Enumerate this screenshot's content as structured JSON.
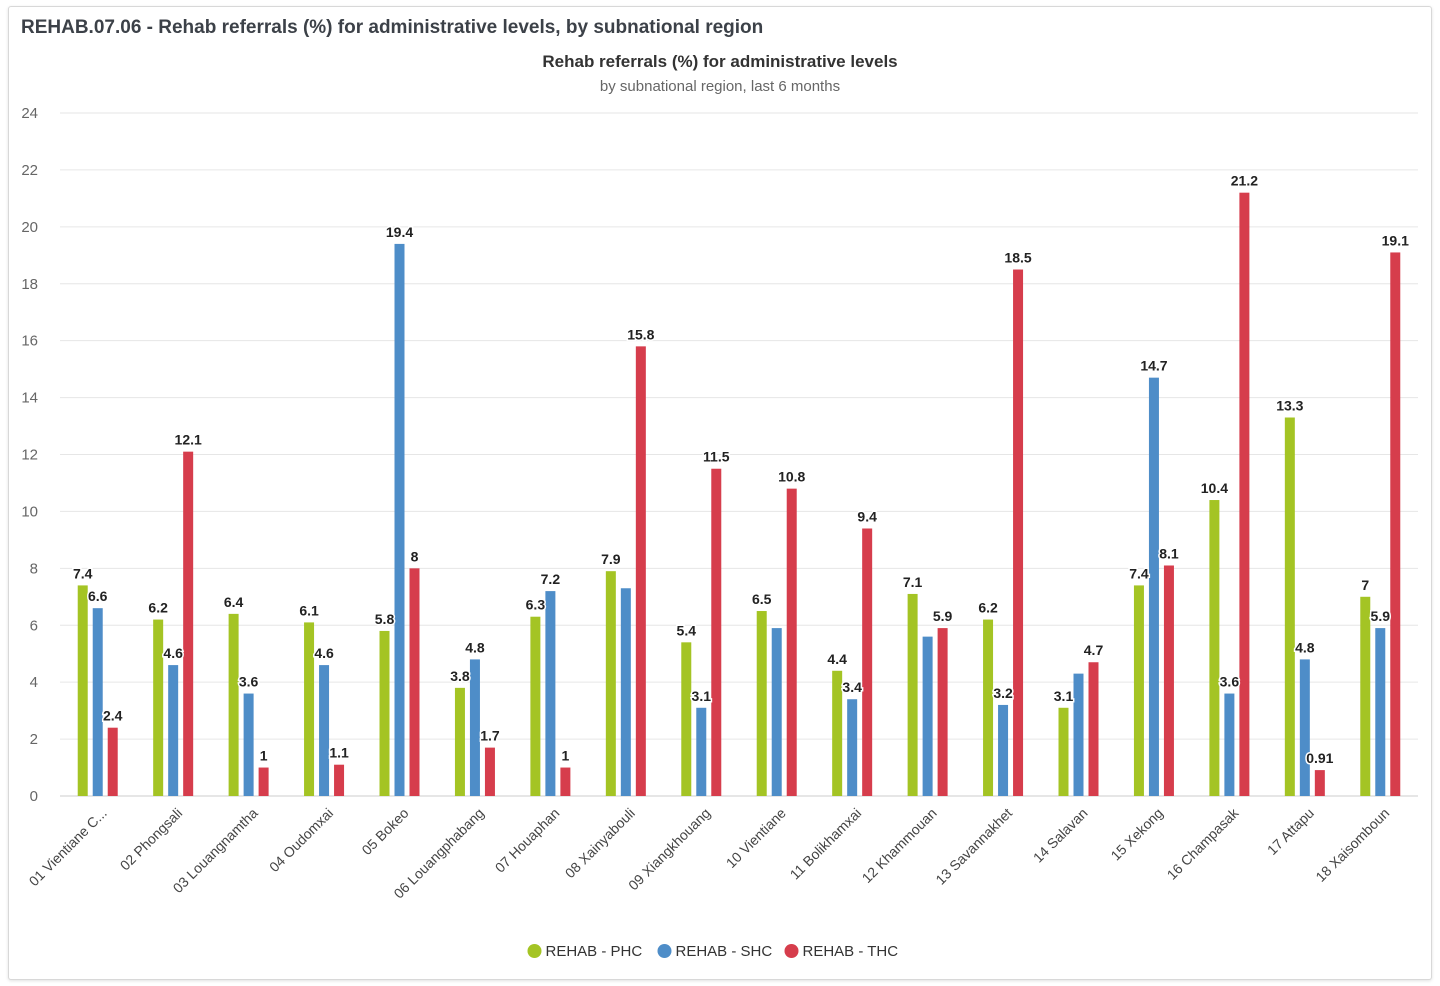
{
  "panel": {
    "title": "REHAB.07.06 - Rehab referrals (%) for administrative levels, by subnational region"
  },
  "chart_data": {
    "type": "bar",
    "title": "Rehab referrals (%) for administrative levels",
    "subtitle": "by subnational region, last 6 months",
    "xlabel": "",
    "ylabel": "",
    "ylim": [
      0,
      24
    ],
    "yticks": [
      0,
      2,
      4,
      6,
      8,
      10,
      12,
      14,
      16,
      18,
      20,
      22,
      24
    ],
    "grid": true,
    "legend_position": "bottom-center",
    "categories": [
      "01 Vientiane C...",
      "02 Phongsali",
      "03 Louangnamtha",
      "04 Oudomxai",
      "05 Bokeo",
      "06 Louangphabang",
      "07 Houaphan",
      "08 Xainyabouli",
      "09 Xiangkhouang",
      "10 Vientiane",
      "11 Bolikhamxai",
      "12 Khammouan",
      "13 Savannakhet",
      "14 Salavan",
      "15 Xekong",
      "16 Champasak",
      "17 Attapu",
      "18 Xaisomboun"
    ],
    "series": [
      {
        "name": "REHAB - PHC",
        "color": "#a4c424",
        "values": [
          7.4,
          6.2,
          6.4,
          6.1,
          5.8,
          3.8,
          6.3,
          7.9,
          5.4,
          6.5,
          4.4,
          7.1,
          6.2,
          3.1,
          7.4,
          10.4,
          13.3,
          7
        ],
        "labels": [
          "7.4",
          "6.2",
          "6.4",
          "6.1",
          "5.8",
          "3.8",
          "6.3",
          "7.9",
          "5.4",
          "6.5",
          "4.4",
          "7.1",
          "6.2",
          "3.1",
          "7.4",
          "10.4",
          "13.3",
          "7"
        ]
      },
      {
        "name": "REHAB - SHC",
        "color": "#4e8dc8",
        "values": [
          6.6,
          4.6,
          3.6,
          4.6,
          19.4,
          4.8,
          7.2,
          7.3,
          3.1,
          5.9,
          3.4,
          5.6,
          3.2,
          4.3,
          14.7,
          3.6,
          4.8,
          5.9
        ],
        "labels": [
          "6.6",
          "4.6",
          "3.6",
          "4.6",
          "19.4",
          "4.8",
          "7.2",
          "",
          "3.1",
          "",
          "3.4",
          "",
          "3.2",
          "",
          "14.7",
          "3.6",
          "4.8",
          "5.9"
        ]
      },
      {
        "name": "REHAB - THC",
        "color": "#d63d4c",
        "values": [
          2.4,
          12.1,
          1,
          1.1,
          8,
          1.7,
          1,
          15.8,
          11.5,
          10.8,
          9.4,
          5.9,
          18.5,
          4.7,
          8.1,
          21.2,
          0.91,
          19.1
        ],
        "labels": [
          "2.4",
          "12.1",
          "1",
          "1.1",
          "8",
          "1.7",
          "1",
          "15.8",
          "11.5",
          "10.8",
          "9.4",
          "5.9",
          "18.5",
          "4.7",
          "8.1",
          "21.2",
          "0.91",
          "19.1"
        ]
      }
    ]
  }
}
